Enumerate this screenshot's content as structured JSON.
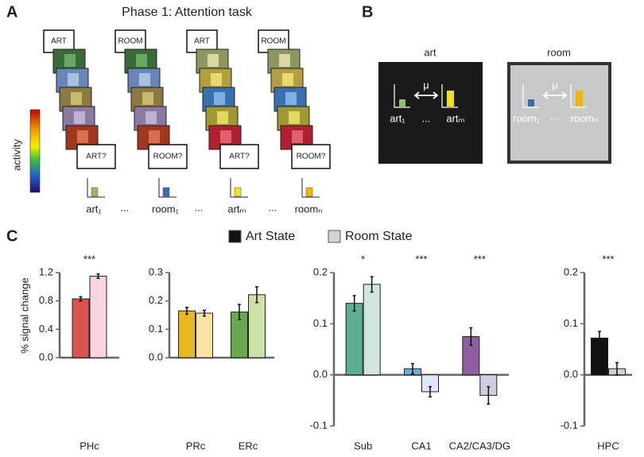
{
  "panel_a": {
    "label": "A",
    "title": "Phase 1: Attention task",
    "colorbar_label": "activity",
    "cues": [
      "ART",
      "ROOM",
      "ART",
      "ROOM"
    ],
    "probes": [
      "ART?",
      "ROOM?",
      "ART?",
      "ROOM?"
    ],
    "patterns": [
      "art₁",
      "room₁",
      "artₘ",
      "roomₙ"
    ],
    "ellipses": [
      "...",
      "...",
      "..."
    ]
  },
  "panel_b": {
    "label": "B",
    "states": [
      {
        "title": "art",
        "mu": "μ",
        "first": "art₁",
        "ellipsis": "...",
        "last": "artₘ"
      },
      {
        "title": "room",
        "mu": "μ",
        "first": "room₁",
        "ellipsis": "···",
        "last": "roomₙ"
      }
    ]
  },
  "panel_c": {
    "label": "C",
    "legend": [
      {
        "name": "Art State",
        "color": "#111111"
      },
      {
        "name": "Room State",
        "color": "#d3d3d3"
      }
    ]
  },
  "chart_data": [
    {
      "type": "bar",
      "y_label": "% signal change",
      "categories": [
        "PHc"
      ],
      "significance": [
        "***"
      ],
      "ylim": [
        0,
        1.2
      ],
      "yticks": [
        {
          "value": 0,
          "label": "0.0"
        },
        0.4,
        0.8,
        1.2
      ],
      "series": [
        {
          "colors": [
            "#d9534f"
          ],
          "values": [
            0.83
          ],
          "errors": [
            0.03
          ]
        },
        {
          "colors": [
            "#f5d5de"
          ],
          "values": [
            1.15
          ],
          "errors": [
            0.03
          ]
        }
      ]
    },
    {
      "type": "bar",
      "categories": [
        "PRc",
        "ERc"
      ],
      "ylim": [
        0,
        0.3
      ],
      "yticks": [
        {
          "value": 0,
          "label": "0.0"
        },
        0.1,
        0.2,
        0.3
      ],
      "series": [
        {
          "colors": [
            "#e8b820",
            "#6aa84f"
          ],
          "values": [
            0.165,
            0.161
          ],
          "errors": [
            0.012,
            0.027
          ]
        },
        {
          "colors": [
            "#f8e4a8",
            "#cde3a5"
          ],
          "values": [
            0.157,
            0.222
          ],
          "errors": [
            0.01,
            0.028
          ]
        }
      ]
    },
    {
      "type": "bar",
      "categories": [
        "Sub",
        "CA1",
        "CA2/CA3/DG"
      ],
      "significance": [
        "*",
        "***",
        "***"
      ],
      "ylim": [
        -0.1,
        0.2
      ],
      "yticks": [
        -0.1,
        {
          "value": 0,
          "label": "0.0"
        },
        0.1,
        0.2
      ],
      "series": [
        {
          "colors": [
            "#5daf8f",
            "#6baed6",
            "#8e5ea2"
          ],
          "values": [
            0.14,
            0.012,
            0.075
          ],
          "errors": [
            0.015,
            0.01,
            0.017
          ]
        },
        {
          "colors": [
            "#cfe6e0",
            "#dce9f5",
            "#d2cae3"
          ],
          "values": [
            0.177,
            -0.033,
            -0.04
          ],
          "errors": [
            0.015,
            0.01,
            0.017
          ]
        }
      ]
    },
    {
      "type": "bar",
      "categories": [
        "HPC"
      ],
      "significance": [
        "***"
      ],
      "ylim": [
        -0.1,
        0.2
      ],
      "yticks": [
        -0.1,
        {
          "value": 0,
          "label": "0.0"
        },
        0.1,
        0.2
      ],
      "series": [
        {
          "colors": [
            "#111111"
          ],
          "values": [
            0.072
          ],
          "errors": [
            0.013
          ]
        },
        {
          "colors": [
            "#d0d0d0"
          ],
          "values": [
            0.012
          ],
          "errors": [
            0.012
          ]
        }
      ]
    }
  ]
}
